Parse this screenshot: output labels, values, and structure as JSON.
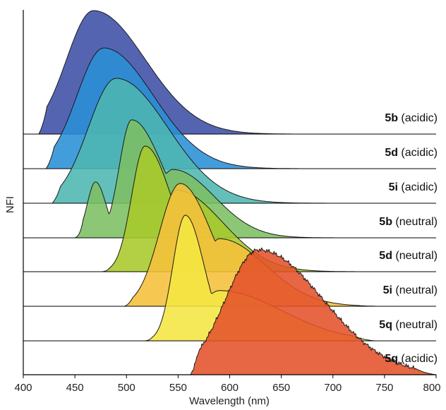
{
  "chart_data": {
    "type": "area",
    "title": "",
    "xlabel": "Wavelength (nm)",
    "ylabel": "NFI",
    "xlim": [
      400,
      800
    ],
    "xticks": [
      "400",
      "450",
      "500",
      "550",
      "600",
      "650",
      "700",
      "750",
      "800"
    ],
    "layout": "stacked ridgeline (offset baselines), topmost first",
    "series": [
      {
        "label_id": "5b",
        "label_cond": "(acidic)",
        "color": "#3d4fa6",
        "start": 415,
        "end": 670,
        "peaks": [
          {
            "x": 468,
            "y": 1.0,
            "wl": 26,
            "wr": 50
          }
        ]
      },
      {
        "label_id": "5d",
        "label_cond": "(acidic)",
        "color": "#2a8fd6",
        "start": 422,
        "end": 680,
        "peaks": [
          {
            "x": 478,
            "y": 1.0,
            "wl": 26,
            "wr": 48
          }
        ]
      },
      {
        "label_id": "5i",
        "label_cond": "(acidic)",
        "color": "#4db6b0",
        "start": 428,
        "end": 715,
        "peaks": [
          {
            "x": 490,
            "y": 1.0,
            "wl": 27,
            "wr": 50
          }
        ]
      },
      {
        "label_id": "5b",
        "label_cond": "(neutral)",
        "color": "#7cbf63",
        "start": 450,
        "end": 735,
        "peaks": [
          {
            "x": 470,
            "y": 0.45,
            "wl": 8,
            "wr": 10
          },
          {
            "x": 505,
            "y": 0.95,
            "wl": 12,
            "wr": 30
          },
          {
            "x": 545,
            "y": 0.55,
            "wl": 18,
            "wr": 40
          }
        ]
      },
      {
        "label_id": "5d",
        "label_cond": "(neutral)",
        "color": "#a8c92a",
        "start": 476,
        "end": 735,
        "peaks": [
          {
            "x": 518,
            "y": 1.0,
            "wl": 13,
            "wr": 25
          },
          {
            "x": 548,
            "y": 0.65,
            "wl": 12,
            "wr": 45
          }
        ]
      },
      {
        "label_id": "5i",
        "label_cond": "(neutral)",
        "color": "#f5c03a",
        "start": 498,
        "end": 745,
        "peaks": [
          {
            "x": 552,
            "y": 1.0,
            "wl": 20,
            "wr": 30
          },
          {
            "x": 590,
            "y": 0.55,
            "wl": 15,
            "wr": 45
          }
        ]
      },
      {
        "label_id": "5q",
        "label_cond": "(neutral)",
        "color": "#f5e642",
        "start": 517,
        "end": 740,
        "peaks": [
          {
            "x": 557,
            "y": 1.0,
            "wl": 12,
            "wr": 18
          },
          {
            "x": 590,
            "y": 0.4,
            "wl": 20,
            "wr": 60
          }
        ]
      },
      {
        "label_id": "5q",
        "label_cond": "(acidic)",
        "color": "#e4522a",
        "start": 562,
        "end": 800,
        "peaks": [
          {
            "x": 628,
            "y": 1.0,
            "wl": 32,
            "wr": 62
          }
        ]
      }
    ]
  }
}
